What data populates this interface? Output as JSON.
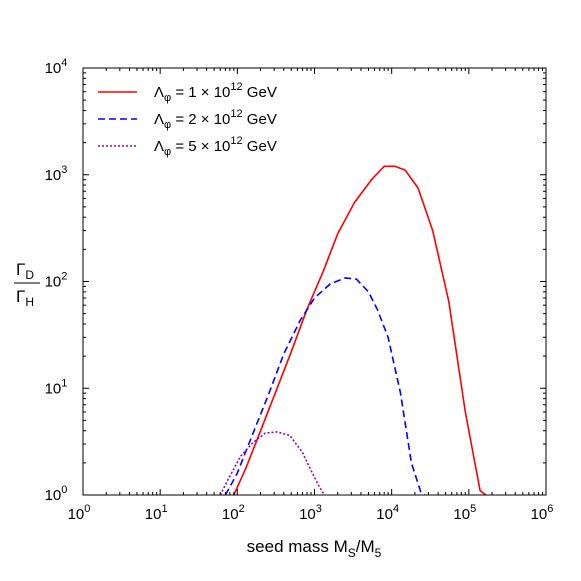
{
  "chart_data": {
    "type": "line",
    "title": "",
    "xlabel": {
      "main": "seed mass M",
      "sub1": "S",
      "slash": "/M",
      "sub2": "5"
    },
    "ylabel": {
      "numerator": "Γ",
      "numerator_sub": "D",
      "denominator": "Γ",
      "denominator_sub": "H"
    },
    "xscale": "log",
    "yscale": "log",
    "xlim": [
      1,
      1000000
    ],
    "ylim": [
      1,
      10000
    ],
    "grid": false,
    "legend_position": "top-left",
    "x_ticks": [
      {
        "value": 1,
        "base": "10",
        "exp": "0"
      },
      {
        "value": 10,
        "base": "10",
        "exp": "1"
      },
      {
        "value": 100,
        "base": "10",
        "exp": "2"
      },
      {
        "value": 1000,
        "base": "10",
        "exp": "3"
      },
      {
        "value": 10000,
        "base": "10",
        "exp": "4"
      },
      {
        "value": 100000,
        "base": "10",
        "exp": "5"
      },
      {
        "value": 1000000,
        "base": "10",
        "exp": "6"
      }
    ],
    "y_ticks": [
      {
        "value": 1,
        "base": "10",
        "exp": "0"
      },
      {
        "value": 10,
        "base": "10",
        "exp": "1"
      },
      {
        "value": 100,
        "base": "10",
        "exp": "2"
      },
      {
        "value": 1000,
        "base": "10",
        "exp": "3"
      },
      {
        "value": 10000,
        "base": "10",
        "exp": "4"
      }
    ],
    "series": [
      {
        "name": {
          "lambda": "Λ",
          "sub": "φ",
          "eq": " = 1 × 10",
          "exp": "12",
          "unit": " GeV"
        },
        "color": "#ff0000",
        "dash": "solid",
        "x": [
          90,
          130,
          200,
          300,
          500,
          800,
          1300,
          2000,
          3300,
          5500,
          8000,
          11000,
          15000,
          22000,
          34000,
          55000,
          90000,
          140000,
          200000
        ],
        "y": [
          1,
          1.8,
          4,
          8.5,
          22,
          55,
          125,
          280,
          550,
          900,
          1200,
          1200,
          1100,
          750,
          300,
          65,
          6,
          1.1,
          0.9
        ]
      },
      {
        "name": {
          "lambda": "Λ",
          "sub": "φ",
          "eq": " = 2 × 10",
          "exp": "12",
          "unit": " GeV"
        },
        "color": "#0000ff",
        "dash": "dashed",
        "x": [
          70,
          100,
          160,
          250,
          400,
          650,
          1000,
          1600,
          2500,
          3500,
          5000,
          6500,
          9000,
          13000,
          18000,
          24000,
          30000
        ],
        "y": [
          1,
          1.6,
          3.8,
          8.5,
          21,
          43,
          70,
          95,
          108,
          105,
          80,
          55,
          30,
          9,
          2,
          1.05,
          0.95
        ]
      },
      {
        "name": {
          "lambda": "Λ",
          "sub": "φ",
          "eq": " = 5 × 10",
          "exp": "12",
          "unit": " GeV"
        },
        "color": "#9400d3",
        "dash": "dotted",
        "x": [
          60,
          80,
          110,
          160,
          230,
          330,
          480,
          700,
          900,
          1150,
          1400
        ],
        "y": [
          1,
          1.5,
          2.3,
          3.1,
          3.8,
          3.9,
          3.6,
          2.5,
          1.7,
          1.2,
          0.95
        ]
      }
    ]
  }
}
